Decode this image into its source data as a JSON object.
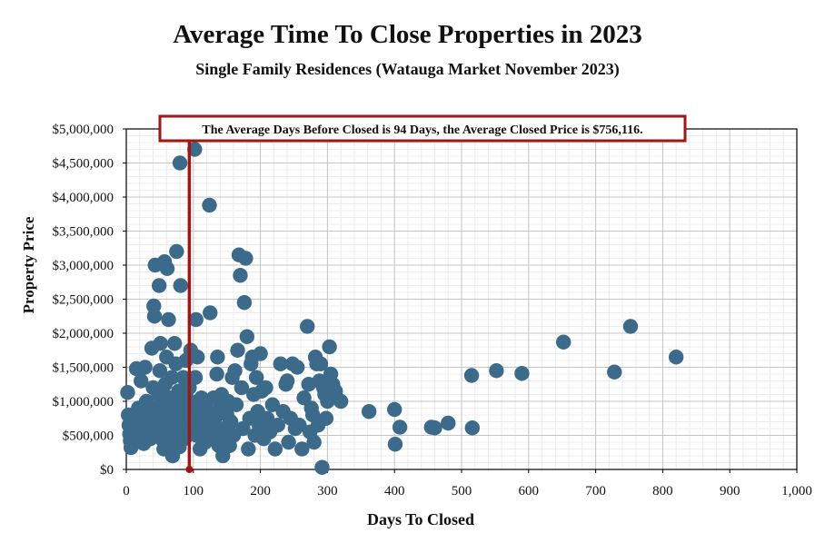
{
  "chart_data": {
    "type": "scatter",
    "title": "Average Time To Close Properties in 2023",
    "subtitle": "Single Family Residences (Watauga Market November 2023)",
    "xlabel": "Days To Closed",
    "ylabel": "Property Price",
    "xlim": [
      0,
      1000
    ],
    "ylim": [
      0,
      5000000
    ],
    "x_ticks": [
      "0",
      "100",
      "200",
      "300",
      "400",
      "500",
      "600",
      "700",
      "800",
      "900",
      "1,000"
    ],
    "y_ticks": [
      "$0",
      "$500,000",
      "$1,000,000",
      "$1,500,000",
      "$2,000,000",
      "$2,500,000",
      "$3,000,000",
      "$3,500,000",
      "$4,000,000",
      "$4,500,000",
      "$5,000,000"
    ],
    "grid": true,
    "marker_color": "#3b6a8a",
    "reference_line": {
      "x": 94,
      "color": "#a31515"
    },
    "annotation": "The Average Days Before Closed is 94 Days, the Average Closed Price is $756,116.",
    "points": [
      [
        2,
        1130000
      ],
      [
        3,
        800000
      ],
      [
        4,
        650000
      ],
      [
        5,
        520000
      ],
      [
        6,
        420000
      ],
      [
        7,
        320000
      ],
      [
        10,
        600000
      ],
      [
        12,
        750000
      ],
      [
        14,
        480000
      ],
      [
        15,
        1480000
      ],
      [
        18,
        900000
      ],
      [
        20,
        560000
      ],
      [
        22,
        1300000
      ],
      [
        24,
        700000
      ],
      [
        26,
        380000
      ],
      [
        28,
        1500000
      ],
      [
        30,
        1000000
      ],
      [
        32,
        820000
      ],
      [
        34,
        600000
      ],
      [
        36,
        450000
      ],
      [
        38,
        1780000
      ],
      [
        40,
        1200000
      ],
      [
        41,
        2400000
      ],
      [
        42,
        2250000
      ],
      [
        43,
        3000000
      ],
      [
        44,
        900000
      ],
      [
        45,
        680000
      ],
      [
        46,
        530000
      ],
      [
        48,
        1100000
      ],
      [
        49,
        2700000
      ],
      [
        50,
        1450000
      ],
      [
        51,
        1850000
      ],
      [
        52,
        980000
      ],
      [
        53,
        760000
      ],
      [
        54,
        610000
      ],
      [
        55,
        420000
      ],
      [
        56,
        300000
      ],
      [
        57,
        3050000
      ],
      [
        58,
        1250000
      ],
      [
        60,
        1650000
      ],
      [
        61,
        2950000
      ],
      [
        62,
        880000
      ],
      [
        63,
        2200000
      ],
      [
        64,
        1050000
      ],
      [
        65,
        700000
      ],
      [
        66,
        560000
      ],
      [
        67,
        400000
      ],
      [
        68,
        1350000
      ],
      [
        69,
        200000
      ],
      [
        70,
        950000
      ],
      [
        72,
        1850000
      ],
      [
        73,
        640000
      ],
      [
        74,
        1550000
      ],
      [
        75,
        3200000
      ],
      [
        76,
        820000
      ],
      [
        77,
        470000
      ],
      [
        78,
        1150000
      ],
      [
        79,
        330000
      ],
      [
        80,
        4500000
      ],
      [
        81,
        2700000
      ],
      [
        82,
        1000000
      ],
      [
        84,
        600000
      ],
      [
        85,
        1350000
      ],
      [
        86,
        780000
      ],
      [
        87,
        450000
      ],
      [
        88,
        1150000
      ],
      [
        89,
        1600000
      ],
      [
        90,
        900000
      ],
      [
        91,
        700000
      ],
      [
        92,
        520000
      ],
      [
        94,
        1200000
      ],
      [
        95,
        1000000
      ],
      [
        96,
        1750000
      ],
      [
        98,
        800000
      ],
      [
        100,
        650000
      ],
      [
        102,
        4700000
      ],
      [
        103,
        1350000
      ],
      [
        104,
        2200000
      ],
      [
        105,
        500000
      ],
      [
        106,
        1650000
      ],
      [
        108,
        900000
      ],
      [
        110,
        300000
      ],
      [
        112,
        1050000
      ],
      [
        114,
        700000
      ],
      [
        116,
        600000
      ],
      [
        118,
        400000
      ],
      [
        120,
        1000000
      ],
      [
        122,
        850000
      ],
      [
        124,
        3880000
      ],
      [
        125,
        2300000
      ],
      [
        126,
        650000
      ],
      [
        128,
        550000
      ],
      [
        130,
        1050000
      ],
      [
        132,
        750000
      ],
      [
        134,
        450000
      ],
      [
        135,
        1400000
      ],
      [
        136,
        1650000
      ],
      [
        138,
        350000
      ],
      [
        140,
        900000
      ],
      [
        142,
        1100000
      ],
      [
        144,
        200000
      ],
      [
        146,
        600000
      ],
      [
        148,
        500000
      ],
      [
        150,
        800000
      ],
      [
        152,
        1000000
      ],
      [
        154,
        350000
      ],
      [
        156,
        700000
      ],
      [
        158,
        1350000
      ],
      [
        160,
        500000
      ],
      [
        162,
        1450000
      ],
      [
        164,
        950000
      ],
      [
        166,
        1750000
      ],
      [
        168,
        3150000
      ],
      [
        170,
        2850000
      ],
      [
        172,
        1200000
      ],
      [
        174,
        600000
      ],
      [
        176,
        2450000
      ],
      [
        178,
        3100000
      ],
      [
        180,
        1950000
      ],
      [
        182,
        300000
      ],
      [
        184,
        750000
      ],
      [
        186,
        1550000
      ],
      [
        188,
        1650000
      ],
      [
        190,
        1100000
      ],
      [
        192,
        500000
      ],
      [
        194,
        1350000
      ],
      [
        196,
        850000
      ],
      [
        198,
        650000
      ],
      [
        200,
        1700000
      ],
      [
        202,
        1150000
      ],
      [
        205,
        450000
      ],
      [
        208,
        1200000
      ],
      [
        210,
        750000
      ],
      [
        214,
        550000
      ],
      [
        218,
        950000
      ],
      [
        222,
        300000
      ],
      [
        226,
        650000
      ],
      [
        230,
        1550000
      ],
      [
        234,
        850000
      ],
      [
        238,
        1250000
      ],
      [
        240,
        1300000
      ],
      [
        242,
        400000
      ],
      [
        245,
        750000
      ],
      [
        248,
        1550000
      ],
      [
        252,
        600000
      ],
      [
        255,
        1500000
      ],
      [
        258,
        650000
      ],
      [
        262,
        300000
      ],
      [
        265,
        1050000
      ],
      [
        270,
        2100000
      ],
      [
        272,
        1250000
      ],
      [
        274,
        550000
      ],
      [
        276,
        900000
      ],
      [
        278,
        800000
      ],
      [
        280,
        400000
      ],
      [
        282,
        1650000
      ],
      [
        284,
        1550000
      ],
      [
        286,
        650000
      ],
      [
        288,
        1300000
      ],
      [
        290,
        1550000
      ],
      [
        292,
        30000
      ],
      [
        294,
        1200000
      ],
      [
        296,
        1100000
      ],
      [
        298,
        750000
      ],
      [
        300,
        1000000
      ],
      [
        303,
        1800000
      ],
      [
        305,
        1400000
      ],
      [
        308,
        1250000
      ],
      [
        312,
        1150000
      ],
      [
        320,
        1000000
      ],
      [
        362,
        850000
      ],
      [
        400,
        880000
      ],
      [
        401,
        370000
      ],
      [
        408,
        620000
      ],
      [
        455,
        620000
      ],
      [
        460,
        610000
      ],
      [
        480,
        680000
      ],
      [
        515,
        1380000
      ],
      [
        516,
        610000
      ],
      [
        552,
        1450000
      ],
      [
        590,
        1410000
      ],
      [
        652,
        1870000
      ],
      [
        728,
        1430000
      ],
      [
        752,
        2100000
      ],
      [
        820,
        1650000
      ]
    ]
  }
}
